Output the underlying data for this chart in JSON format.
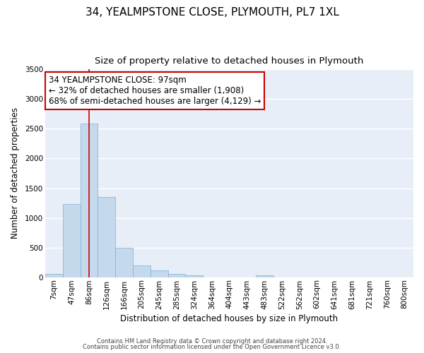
{
  "title_line1": "34, YEALMPSTONE CLOSE, PLYMOUTH, PL7 1XL",
  "title_line2": "Size of property relative to detached houses in Plymouth",
  "xlabel": "Distribution of detached houses by size in Plymouth",
  "ylabel": "Number of detached properties",
  "bar_color": "#c5d9ed",
  "bar_edge_color": "#7aafd4",
  "background_color": "#e8eef8",
  "grid_color": "#ffffff",
  "fig_facecolor": "#ffffff",
  "categories": [
    "7sqm",
    "47sqm",
    "86sqm",
    "126sqm",
    "166sqm",
    "205sqm",
    "245sqm",
    "285sqm",
    "324sqm",
    "364sqm",
    "404sqm",
    "443sqm",
    "483sqm",
    "522sqm",
    "562sqm",
    "602sqm",
    "641sqm",
    "681sqm",
    "721sqm",
    "760sqm",
    "800sqm"
  ],
  "values": [
    50,
    1230,
    2590,
    1350,
    500,
    200,
    110,
    50,
    30,
    0,
    0,
    0,
    30,
    0,
    0,
    0,
    0,
    0,
    0,
    0,
    0
  ],
  "ylim": [
    0,
    3500
  ],
  "yticks": [
    0,
    500,
    1000,
    1500,
    2000,
    2500,
    3000,
    3500
  ],
  "vline_x": 2,
  "vline_color": "#cc0000",
  "annotation_text": "34 YEALMPSTONE CLOSE: 97sqm\n← 32% of detached houses are smaller (1,908)\n68% of semi-detached houses are larger (4,129) →",
  "annotation_box_facecolor": "#ffffff",
  "annotation_box_edgecolor": "#cc0000",
  "footnote1": "Contains HM Land Registry data © Crown copyright and database right 2024.",
  "footnote2": "Contains public sector information licensed under the Open Government Licence v3.0.",
  "title_fontsize": 11,
  "subtitle_fontsize": 9.5,
  "axis_label_fontsize": 8.5,
  "tick_fontsize": 7.5,
  "annotation_fontsize": 8.5,
  "footnote_fontsize": 6.0
}
